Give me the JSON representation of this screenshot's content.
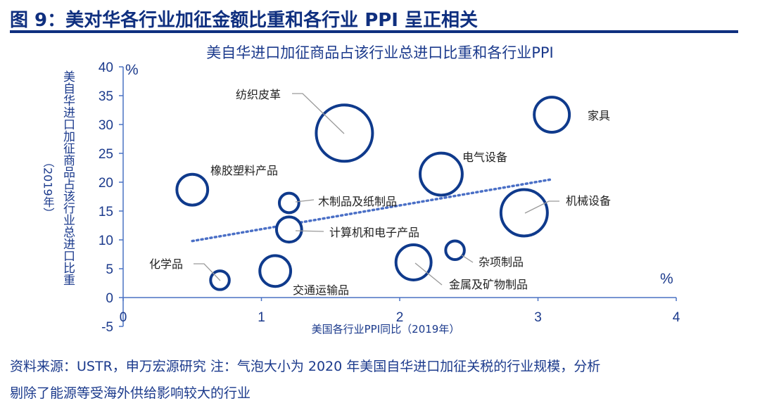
{
  "figure_title": "图 9：美对华各行业加征金额比重和各行业 PPI 呈正相关",
  "source_note_line1": "资料来源：USTR，申万宏源研究 注：气泡大小为 2020 年美国自华进口加征关税的行业规模，分析",
  "source_note_line2": "剔除了能源等受海外供给影响较大的行业",
  "chart_data": {
    "type": "scatter",
    "subtype": "bubble",
    "title": "美自华进口加征商品占该行业总进口比重和各行业PPI",
    "xlabel": "美国各行业PPI同比（2019年）",
    "ylabel": "美自华进口加征商品占该行业总进口比重",
    "ylabel2": "（2019年）",
    "x_unit": "%",
    "y_unit": "%",
    "xlim": [
      0,
      4
    ],
    "ylim": [
      -5,
      40
    ],
    "xticks": [
      "0",
      "1",
      "2",
      "3",
      "4"
    ],
    "yticks": [
      "-5",
      "0",
      "5",
      "10",
      "15",
      "20",
      "25",
      "30",
      "35",
      "40"
    ],
    "grid": false,
    "bubble_color": "#0f3a8c",
    "trendline_color": "#4a6fc6",
    "points": [
      {
        "label": "纺织皮革",
        "x": 1.6,
        "y": 28.5,
        "size": 100
      },
      {
        "label": "家具",
        "x": 3.1,
        "y": 31.7,
        "size": 39
      },
      {
        "label": "电气设备",
        "x": 2.3,
        "y": 21.4,
        "size": 56
      },
      {
        "label": "橡胶塑料产品",
        "x": 0.5,
        "y": 18.7,
        "size": 30
      },
      {
        "label": "木制品及纸制品",
        "x": 1.2,
        "y": 16.4,
        "size": 12
      },
      {
        "label": "机械设备",
        "x": 2.9,
        "y": 14.7,
        "size": 68
      },
      {
        "label": "计算机和电子产品",
        "x": 1.2,
        "y": 11.8,
        "size": 20
      },
      {
        "label": "杂项制品",
        "x": 2.4,
        "y": 8.2,
        "size": 11
      },
      {
        "label": "金属及矿物制品",
        "x": 2.1,
        "y": 6.1,
        "size": 39
      },
      {
        "label": "交通运输品",
        "x": 1.1,
        "y": 4.6,
        "size": 30
      },
      {
        "label": "化学品",
        "x": 0.7,
        "y": 3.0,
        "size": 11
      }
    ],
    "trendline": {
      "style": "dotted",
      "x": [
        0.5,
        3.1
      ],
      "y": [
        9.8,
        20.5
      ]
    }
  }
}
